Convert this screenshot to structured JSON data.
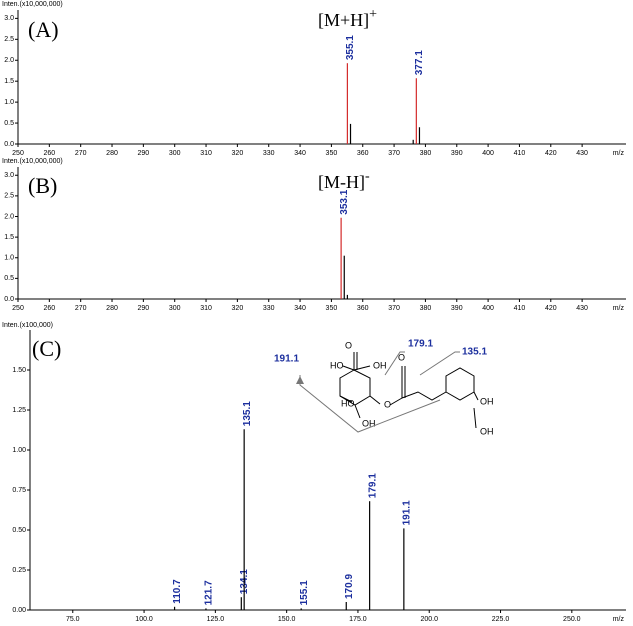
{
  "chart_data": [
    {
      "type": "stem",
      "panel_label": "(A)",
      "y_label": "Inten.(x10,000,000)",
      "x_label": "m/z",
      "annotation": {
        "text": "[M+H]",
        "superscript": "+"
      },
      "xlim": [
        250,
        444
      ],
      "xticks": [
        250,
        260,
        270,
        280,
        290,
        300,
        310,
        320,
        330,
        340,
        350,
        360,
        370,
        380,
        390,
        400,
        410,
        420,
        430
      ],
      "ylim": [
        0,
        3.2
      ],
      "yticks": [
        {
          "value": 0,
          "label": "0.0"
        },
        0.5,
        {
          "value": 1,
          "label": "1.0"
        },
        1.5,
        {
          "value": 2,
          "label": "2.0"
        },
        2.5,
        {
          "value": 3,
          "label": "3.0"
        }
      ],
      "series": [
        {
          "color": "#d42a2a",
          "labeled": true,
          "x": [
            355.1,
            377.1
          ],
          "values": [
            1.93,
            1.57
          ]
        },
        {
          "color": "#000000",
          "labeled": false,
          "x": [
            356.1,
            376.1,
            378.1
          ],
          "values": [
            0.48,
            0.1,
            0.4
          ]
        }
      ]
    },
    {
      "type": "stem",
      "panel_label": "(B)",
      "y_label": "Inten.(x10,000,000)",
      "x_label": "m/z",
      "annotation": {
        "text": "[M-H]",
        "superscript": "-"
      },
      "xlim": [
        250,
        444
      ],
      "xticks": [
        250,
        260,
        270,
        280,
        290,
        300,
        310,
        320,
        330,
        340,
        350,
        360,
        370,
        380,
        390,
        400,
        410,
        420,
        430
      ],
      "ylim": [
        0,
        3.2
      ],
      "yticks": [
        {
          "value": 0,
          "label": "0.0"
        },
        0.5,
        {
          "value": 1,
          "label": "1.0"
        },
        1.5,
        {
          "value": 2,
          "label": "2.0"
        },
        2.5,
        {
          "value": 3,
          "label": "3.0"
        }
      ],
      "series": [
        {
          "color": "#d42a2a",
          "labeled": true,
          "x": [
            353.1
          ],
          "values": [
            1.97
          ]
        },
        {
          "color": "#000000",
          "labeled": false,
          "x": [
            354.1,
            355.1
          ],
          "values": [
            1.05,
            0.1
          ]
        }
      ]
    },
    {
      "type": "stem",
      "panel_label": "(C)",
      "y_label": "Inten.(x100,000)",
      "x_label": "m/z",
      "xlim": [
        60,
        269
      ],
      "xticks": [
        {
          "value": 75,
          "label": "75.0"
        },
        {
          "value": 100,
          "label": "100.0"
        },
        {
          "value": 125,
          "label": "125.0"
        },
        {
          "value": 150,
          "label": "150.0"
        },
        {
          "value": 175,
          "label": "175.0"
        },
        {
          "value": 200,
          "label": "200.0"
        },
        {
          "value": 225,
          "label": "225.0"
        },
        {
          "value": 250,
          "label": "250.0"
        }
      ],
      "ylim": [
        0,
        1.75
      ],
      "yticks": [
        {
          "value": 0,
          "label": "0.00"
        },
        0.25,
        {
          "value": 0.5,
          "label": "0.50"
        },
        0.75,
        {
          "value": 1,
          "label": "1.00"
        },
        1.25,
        {
          "value": 1.5,
          "label": "1.50"
        }
      ],
      "series": [
        {
          "color": "#000000",
          "labeled": true,
          "x": [
            110.7,
            121.7,
            134.1,
            135.1,
            155.1,
            170.9,
            179.1,
            191.1
          ],
          "values": [
            0.02,
            0.01,
            0.08,
            1.13,
            0.01,
            0.05,
            0.68,
            0.51
          ]
        }
      ],
      "structure_labels": [
        "HO",
        "O",
        "OH",
        "HO",
        "OH",
        "O",
        "O",
        "OH",
        "OH"
      ]
    }
  ]
}
